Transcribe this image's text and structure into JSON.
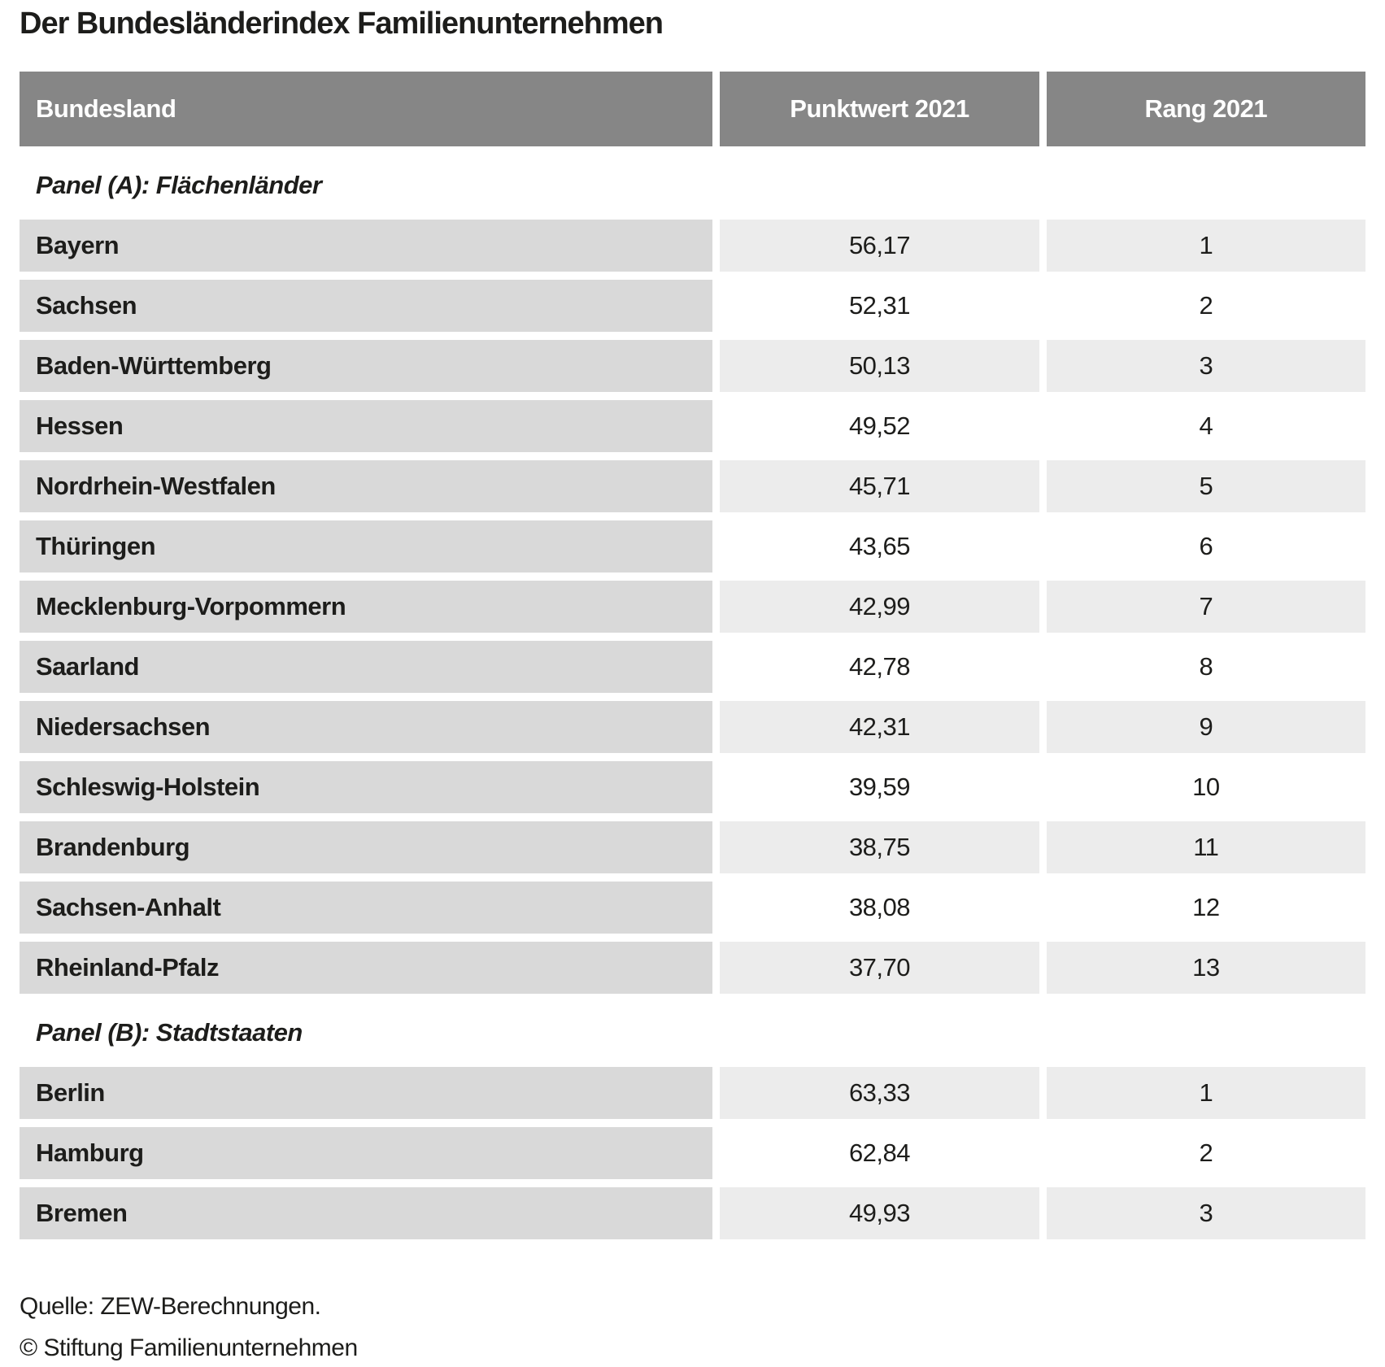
{
  "title": "Der Bundesländerindex Familienunternehmen",
  "table": {
    "columns": [
      "Bundesland",
      "Punktwert 2021",
      "Rang 2021"
    ],
    "panels": [
      {
        "label": "Panel (A): Flächenländer",
        "rows": [
          {
            "name": "Bayern",
            "punktwert": "56,17",
            "rang": "1"
          },
          {
            "name": "Sachsen",
            "punktwert": "52,31",
            "rang": "2"
          },
          {
            "name": "Baden-Württemberg",
            "punktwert": "50,13",
            "rang": "3"
          },
          {
            "name": "Hessen",
            "punktwert": "49,52",
            "rang": "4"
          },
          {
            "name": "Nordrhein-Westfalen",
            "punktwert": "45,71",
            "rang": "5"
          },
          {
            "name": "Thüringen",
            "punktwert": "43,65",
            "rang": "6"
          },
          {
            "name": "Mecklenburg-Vorpommern",
            "punktwert": "42,99",
            "rang": "7"
          },
          {
            "name": "Saarland",
            "punktwert": "42,78",
            "rang": "8"
          },
          {
            "name": "Niedersachsen",
            "punktwert": "42,31",
            "rang": "9"
          },
          {
            "name": "Schleswig-Holstein",
            "punktwert": "39,59",
            "rang": "10"
          },
          {
            "name": "Brandenburg",
            "punktwert": "38,75",
            "rang": "11"
          },
          {
            "name": "Sachsen-Anhalt",
            "punktwert": "38,08",
            "rang": "12"
          },
          {
            "name": "Rheinland-Pfalz",
            "punktwert": "37,70",
            "rang": "13"
          }
        ]
      },
      {
        "label": "Panel (B): Stadtstaaten",
        "rows": [
          {
            "name": "Berlin",
            "punktwert": "63,33",
            "rang": "1"
          },
          {
            "name": "Hamburg",
            "punktwert": "62,84",
            "rang": "2"
          },
          {
            "name": "Bremen",
            "punktwert": "49,93",
            "rang": "3"
          }
        ]
      }
    ]
  },
  "footer": {
    "source": "Quelle: ZEW-Berechnungen.",
    "copyright": "© Stiftung Familienunternehmen"
  },
  "colors": {
    "header_bg": "#868686",
    "header_text": "#ffffff",
    "name_cell_bg": "#d9d9d9",
    "value_cell_alt_bg": "#ececec",
    "text": "#1d1d1b",
    "page_bg": "#ffffff"
  },
  "chart_data": {
    "type": "table",
    "title": "Der Bundesländerindex Familienunternehmen",
    "columns": [
      "Bundesland",
      "Punktwert 2021",
      "Rang 2021"
    ],
    "panels": [
      {
        "label": "Panel (A): Flächenländer",
        "rows": [
          [
            "Bayern",
            56.17,
            1
          ],
          [
            "Sachsen",
            52.31,
            2
          ],
          [
            "Baden-Württemberg",
            50.13,
            3
          ],
          [
            "Hessen",
            49.52,
            4
          ],
          [
            "Nordrhein-Westfalen",
            45.71,
            5
          ],
          [
            "Thüringen",
            43.65,
            6
          ],
          [
            "Mecklenburg-Vorpommern",
            42.99,
            7
          ],
          [
            "Saarland",
            42.78,
            8
          ],
          [
            "Niedersachsen",
            42.31,
            9
          ],
          [
            "Schleswig-Holstein",
            39.59,
            10
          ],
          [
            "Brandenburg",
            38.75,
            11
          ],
          [
            "Sachsen-Anhalt",
            38.08,
            12
          ],
          [
            "Rheinland-Pfalz",
            37.7,
            13
          ]
        ]
      },
      {
        "label": "Panel (B): Stadtstaaten",
        "rows": [
          [
            "Berlin",
            63.33,
            1
          ],
          [
            "Hamburg",
            62.84,
            2
          ],
          [
            "Bremen",
            49.93,
            3
          ]
        ]
      }
    ],
    "value_format": "decimal-comma",
    "notes": [
      "Quelle: ZEW-Berechnungen.",
      "© Stiftung Familienunternehmen"
    ]
  }
}
